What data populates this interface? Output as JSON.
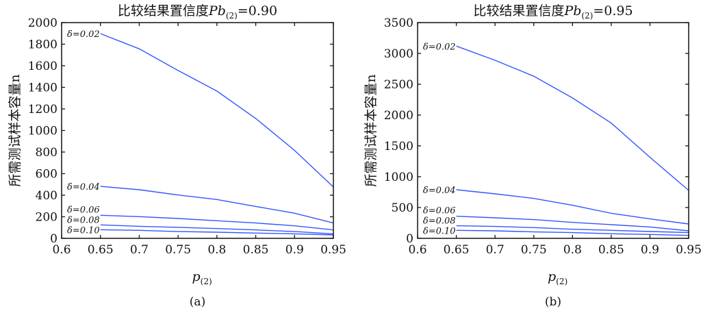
{
  "chart_data": [
    {
      "type": "line",
      "panel_label": "(a)",
      "title": "比较结果置信度Pb(2)=0.90",
      "title_main": "比较结果置信度",
      "title_var": "Pb",
      "title_sub": "(2)",
      "title_value": "=0.90",
      "xlabel": "p",
      "xlabel_sub": "(2)",
      "ylabel": "所需测试样本容量n",
      "xlim": [
        0.6,
        0.95
      ],
      "ylim": [
        0,
        2000
      ],
      "xticks": [
        "0.6",
        "0.65",
        "0.7",
        "0.75",
        "0.8",
        "0.85",
        "0.9",
        "0.95"
      ],
      "yticks": [
        "0",
        "200",
        "400",
        "600",
        "800",
        "1000",
        "1200",
        "1400",
        "1600",
        "1800",
        "2000"
      ],
      "grid": false,
      "color": "#3355ff",
      "x": [
        0.65,
        0.7,
        0.75,
        0.8,
        0.85,
        0.9,
        0.95
      ],
      "series": [
        {
          "name": "δ=0.02",
          "values": [
            1898,
            1757,
            1556,
            1365,
            1111,
            815,
            476
          ]
        },
        {
          "name": "δ=0.04",
          "values": [
            482,
            451,
            402,
            360,
            296,
            233,
            142
          ]
        },
        {
          "name": "δ=0.06",
          "values": [
            214,
            201,
            184,
            163,
            142,
            116,
            78
          ]
        },
        {
          "name": "δ=0.08",
          "values": [
            125,
            112,
            102,
            91,
            78,
            63,
            42
          ]
        },
        {
          "name": "δ=0.10",
          "values": [
            80,
            74,
            63,
            57,
            49,
            42,
            32
          ]
        }
      ]
    },
    {
      "type": "line",
      "panel_label": "(b)",
      "title": "比较结果置信度Pb(2)=0.95",
      "title_main": "比较结果置信度",
      "title_var": "Pb",
      "title_sub": "(2)",
      "title_value": "=0.95",
      "xlabel": "p",
      "xlabel_sub": "(2)",
      "ylabel": "所需测试样本容量n",
      "xlim": [
        0.6,
        0.95
      ],
      "ylim": [
        0,
        3500
      ],
      "xticks": [
        "0.6",
        "0.65",
        "0.7",
        "0.75",
        "0.8",
        "0.85",
        "0.9",
        "0.95"
      ],
      "yticks": [
        "0",
        "500",
        "1000",
        "1500",
        "2000",
        "2500",
        "3000",
        "3500"
      ],
      "grid": false,
      "color": "#3355ff",
      "x": [
        0.65,
        0.7,
        0.75,
        0.8,
        0.85,
        0.9,
        0.95
      ],
      "series": [
        {
          "name": "δ=0.02",
          "values": [
            3119,
            2889,
            2630,
            2278,
            1870,
            1315,
            778
          ]
        },
        {
          "name": "δ=0.04",
          "values": [
            789,
            722,
            648,
            537,
            407,
            315,
            233
          ]
        },
        {
          "name": "δ=0.06",
          "values": [
            359,
            333,
            304,
            259,
            222,
            185,
            122
          ]
        },
        {
          "name": "δ=0.08",
          "values": [
            204,
            193,
            174,
            148,
            130,
            111,
            93
          ]
        },
        {
          "name": "δ=0.10",
          "values": [
            130,
            122,
            104,
            93,
            74,
            63,
            48
          ]
        }
      ]
    }
  ]
}
